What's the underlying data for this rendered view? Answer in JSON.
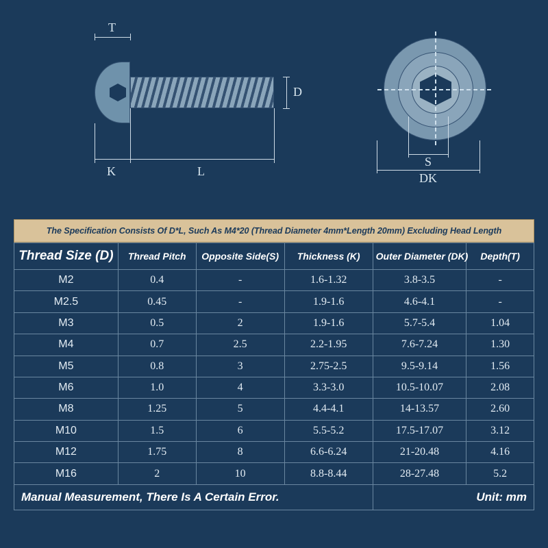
{
  "colors": {
    "background": "#1b3a5a",
    "screw_light": "#8aa5ba",
    "screw_mid": "#7a98af",
    "screw_dark": "#6f92ab",
    "line": "#355272",
    "dim_line": "#d0dde8",
    "dim_text": "#d9e6ef",
    "banner_bg": "#d9c29a",
    "banner_border": "#a98e5e",
    "banner_text": "#1b3a5a",
    "cell_text": "#e3ecf3",
    "grid": "#6a87a0",
    "header_text": "#ffffff"
  },
  "diagram": {
    "labels": {
      "T": "T",
      "K": "K",
      "L": "L",
      "D": "D",
      "S": "S",
      "DK": "DK"
    }
  },
  "banner": {
    "text": "The Specification Consists Of D*L, Such As M4*20 (Thread Diameter 4mm*Length 20mm)  Excluding Head Length",
    "fontsize": 12.6
  },
  "table": {
    "columns": [
      "Thread Size (D)",
      "Thread Pitch",
      "Opposite Side(S)",
      "Thickness (K)",
      "Outer Diameter (DK)",
      "Depth(T)"
    ],
    "header_fontsize": 14,
    "first_header_fontsize": 19,
    "cell_fontsize": 16,
    "rows": [
      [
        "M2",
        "0.4",
        "-",
        "1.6-1.32",
        "3.8-3.5",
        "-"
      ],
      [
        "M2.5",
        "0.45",
        "-",
        "1.9-1.6",
        "4.6-4.1",
        "-"
      ],
      [
        "M3",
        "0.5",
        "2",
        "1.9-1.6",
        "5.7-5.4",
        "1.04"
      ],
      [
        "M4",
        "0.7",
        "2.5",
        "2.2-1.95",
        "7.6-7.24",
        "1.30"
      ],
      [
        "M5",
        "0.8",
        "3",
        "2.75-2.5",
        "9.5-9.14",
        "1.56"
      ],
      [
        "M6",
        "1.0",
        "4",
        "3.3-3.0",
        "10.5-10.07",
        "2.08"
      ],
      [
        "M8",
        "1.25",
        "5",
        "4.4-4.1",
        "14-13.57",
        "2.60"
      ],
      [
        "M10",
        "1.5",
        "6",
        "5.5-5.2",
        "17.5-17.07",
        "3.12"
      ],
      [
        "M12",
        "1.75",
        "8",
        "6.6-6.24",
        "21-20.48",
        "4.16"
      ],
      [
        "M16",
        "2",
        "10",
        "8.8-8.44",
        "28-27.48",
        "5.2"
      ]
    ]
  },
  "footer": {
    "left": "Manual Measurement, There Is A Certain Error.",
    "right": "Unit: mm",
    "fontsize": 17
  }
}
